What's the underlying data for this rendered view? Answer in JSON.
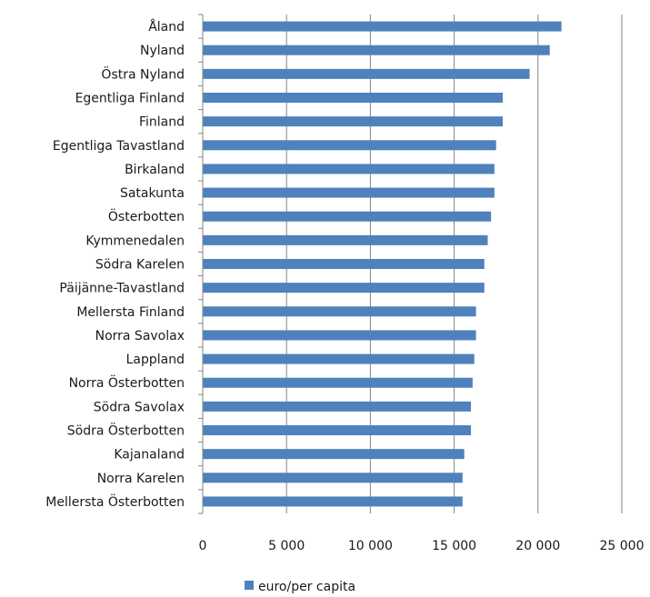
{
  "chart_data": {
    "type": "bar",
    "orientation": "horizontal",
    "categories": [
      "Åland",
      "Nyland",
      "Östra Nyland",
      "Egentliga Finland",
      "Finland",
      "Egentliga Tavastland",
      "Birkaland",
      "Satakunta",
      "Österbotten",
      "Kymmenedalen",
      "Södra Karelen",
      "Päijänne-Tavastland",
      "Mellersta Finland",
      "Norra Savolax",
      "Lappland",
      "Norra Österbotten",
      "Södra Savolax",
      "Södra Österbotten",
      "Kajanaland",
      "Norra Karelen",
      "Mellersta Österbotten"
    ],
    "series": [
      {
        "name": "euro/per capita",
        "color": "#4f81bd",
        "values": [
          21400,
          20700,
          19500,
          17900,
          17900,
          17500,
          17400,
          17400,
          17200,
          17000,
          16800,
          16800,
          16300,
          16300,
          16200,
          16100,
          16000,
          16000,
          15600,
          15500,
          15500
        ]
      }
    ],
    "xlim": [
      0,
      25000
    ],
    "xticks": [
      0,
      5000,
      10000,
      15000,
      20000,
      25000
    ],
    "xtick_labels": [
      "0",
      "5 000",
      "10 000",
      "15 000",
      "20 000",
      "25 000"
    ],
    "grid": "vertical major gridlines",
    "legend": "bottom"
  }
}
